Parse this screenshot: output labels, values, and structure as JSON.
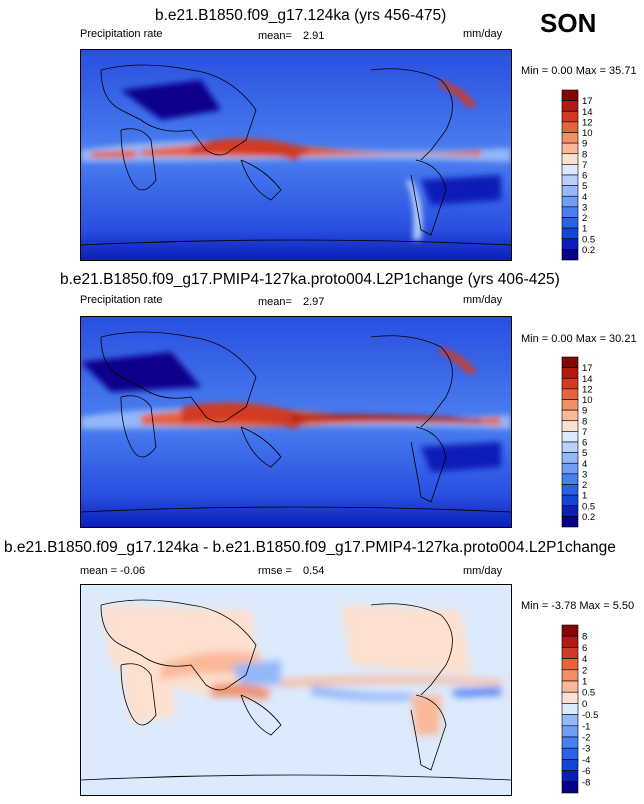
{
  "season": "SON",
  "colors": {
    "prec": [
      "#08008a",
      "#0a1fb8",
      "#1446d6",
      "#2a62e6",
      "#4a7ff0",
      "#6f9cf5",
      "#93b7f8",
      "#b8d1fb",
      "#dceafd",
      "#fde0cf",
      "#fbb898",
      "#f28f67",
      "#e6633e",
      "#d23a22",
      "#b01a12",
      "#850606"
    ],
    "diff": [
      "#08008a",
      "#0a1fb8",
      "#1446d6",
      "#2a62e6",
      "#4a7ff0",
      "#6f9cf5",
      "#93b7f8",
      "#b8d1fb",
      "#dceafd",
      "#fde0cf",
      "#fbb898",
      "#f28f67",
      "#e6633e",
      "#d23a22",
      "#b01a12",
      "#850606"
    ]
  },
  "panels": [
    {
      "title": "b.e21.B1850.f09_g17.124ka (yrs 456-475)",
      "left_label": "Precipitation rate",
      "mean_label": "mean=",
      "mean_value": "2.91",
      "units": "mm/day",
      "minmax": "Min =   0.00 Max =  35.71",
      "cbar_labels": [
        "17",
        "14",
        "12",
        "10",
        "9",
        "8",
        "7",
        "6",
        "5",
        "4",
        "3",
        "2",
        "1",
        "0.5",
        "0.2"
      ]
    },
    {
      "title": "b.e21.B1850.f09_g17.PMIP4-127ka.proto004.L2P1change (yrs 406-425)",
      "left_label": "Precipitation rate",
      "mean_label": "mean=",
      "mean_value": "2.97",
      "units": "mm/day",
      "minmax": "Min =   0.00 Max =  30.21",
      "cbar_labels": [
        "17",
        "14",
        "12",
        "10",
        "9",
        "8",
        "7",
        "6",
        "5",
        "4",
        "3",
        "2",
        "1",
        "0.5",
        "0.2"
      ]
    },
    {
      "title": "b.e21.B1850.f09_g17.124ka - b.e21.B1850.f09_g17.PMIP4-127ka.proto004.L2P1change",
      "left_label": "mean =  -0.06",
      "mean_label": "rmse =",
      "mean_value": "0.54",
      "units": "mm/day",
      "minmax": "Min =  -3.78 Max =   5.50",
      "cbar_labels": [
        "8",
        "6",
        "4",
        "2",
        "1",
        "0.5",
        "0",
        "-0.5",
        "-1",
        "-2",
        "-3",
        "-4",
        "-6",
        "-8"
      ]
    }
  ]
}
